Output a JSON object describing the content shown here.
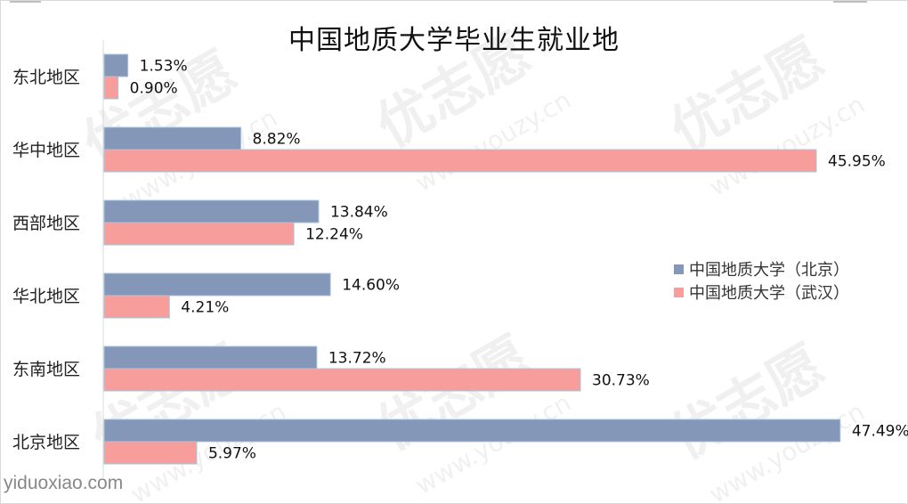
{
  "chart_data": {
    "type": "bar",
    "orientation": "horizontal",
    "title": "中国地质大学毕业生就业地",
    "categories": [
      "东北地区",
      "华中地区",
      "西部地区",
      "华北地区",
      "东南地区",
      "北京地区"
    ],
    "series": [
      {
        "name": "中国地质大学（北京）",
        "values": [
          1.53,
          8.82,
          13.84,
          14.6,
          13.72,
          47.49
        ],
        "color": "#8497b8"
      },
      {
        "name": "中国地质大学（武汉）",
        "values": [
          0.9,
          45.95,
          12.24,
          4.21,
          30.73,
          5.97
        ],
        "color": "#f79d9b"
      }
    ],
    "value_labels": [
      [
        "1.53%",
        "8.82%",
        "13.84%",
        "14.60%",
        "13.72%",
        "47.49%"
      ],
      [
        "0.90%",
        "45.95%",
        "12.24%",
        "4.21%",
        "30.73%",
        "5.97%"
      ]
    ],
    "value_suffix": "%",
    "xlim": [
      0,
      47.5
    ],
    "grid": false,
    "legend_position": "right"
  },
  "watermark": {
    "brand": "优志愿",
    "domain": "www.youzy.cn"
  },
  "source_text": "yiduoxiao.com",
  "colors": {
    "series_border": "#a9c6dc",
    "axis": "#d9d9d9",
    "text": "#222222",
    "source": "#888888"
  }
}
